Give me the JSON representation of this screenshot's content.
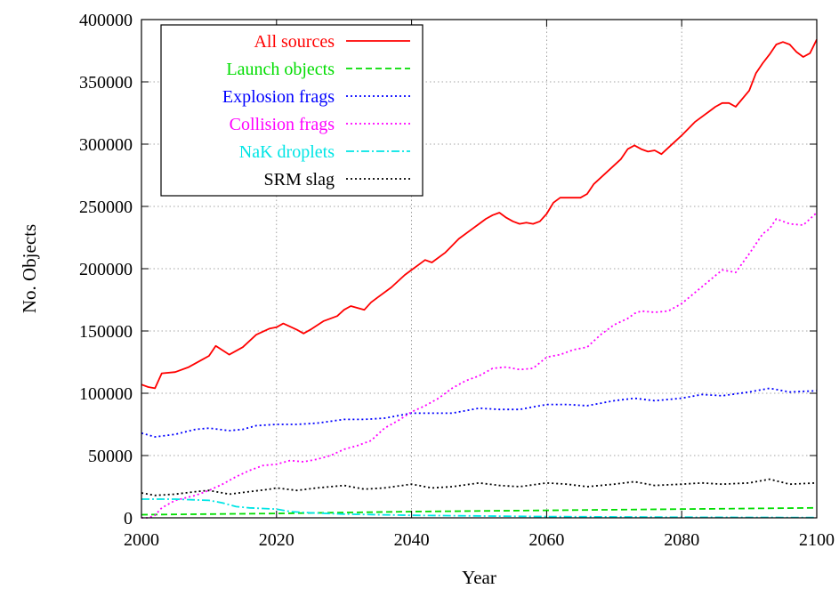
{
  "chart_data": {
    "type": "line",
    "title": "",
    "xlabel": "Year",
    "ylabel": "No. Objects",
    "xlim": [
      2000,
      2100
    ],
    "ylim": [
      0,
      400000
    ],
    "xticks": [
      2000,
      2020,
      2040,
      2060,
      2080,
      2100
    ],
    "yticks": [
      0,
      50000,
      100000,
      150000,
      200000,
      250000,
      300000,
      350000,
      400000
    ],
    "grid": true,
    "legend_position": "top-left",
    "series": [
      {
        "name": "All sources",
        "color": "#ff0000",
        "dash": "solid",
        "x": [
          2000,
          2001,
          2002,
          2003,
          2005,
          2007,
          2009,
          2010,
          2011,
          2013,
          2015,
          2017,
          2019,
          2020,
          2021,
          2023,
          2024,
          2025,
          2027,
          2029,
          2030,
          2031,
          2033,
          2034,
          2035,
          2037,
          2039,
          2040,
          2041,
          2042,
          2043,
          2045,
          2047,
          2049,
          2050,
          2051,
          2052,
          2053,
          2054,
          2055,
          2056,
          2057,
          2058,
          2059,
          2060,
          2061,
          2062,
          2063,
          2065,
          2066,
          2067,
          2069,
          2071,
          2072,
          2073,
          2074,
          2075,
          2076,
          2077,
          2078,
          2080,
          2082,
          2084,
          2085,
          2086,
          2087,
          2088,
          2090,
          2091,
          2092,
          2093,
          2094,
          2095,
          2096,
          2097,
          2098,
          2099,
          2100
        ],
        "y": [
          107000,
          105000,
          104000,
          116000,
          117000,
          121000,
          127000,
          130000,
          138000,
          131000,
          137000,
          147000,
          152000,
          153000,
          156000,
          151000,
          148000,
          151000,
          158000,
          162000,
          167000,
          170000,
          167000,
          173000,
          177000,
          185000,
          195000,
          199000,
          203000,
          207000,
          205000,
          213000,
          224000,
          232000,
          236000,
          240000,
          243000,
          245000,
          241000,
          238000,
          236000,
          237000,
          236000,
          238000,
          244000,
          253000,
          257000,
          257000,
          257000,
          260000,
          268000,
          278000,
          288000,
          296000,
          299000,
          296000,
          294000,
          295000,
          292000,
          297000,
          307000,
          318000,
          326000,
          330000,
          333000,
          333000,
          330000,
          343000,
          357000,
          365000,
          372000,
          380000,
          382000,
          380000,
          374000,
          370000,
          373000,
          384000
        ]
      },
      {
        "name": "Launch objects",
        "color": "#00dd00",
        "dash": "dashed",
        "x": [
          2000,
          2020,
          2040,
          2060,
          2080,
          2100
        ],
        "y": [
          2500,
          3500,
          5000,
          6000,
          7000,
          8000
        ]
      },
      {
        "name": "Explosion frags",
        "color": "#0000ff",
        "dash": "dotted",
        "x": [
          2000,
          2002,
          2005,
          2008,
          2010,
          2013,
          2015,
          2017,
          2020,
          2023,
          2026,
          2030,
          2033,
          2036,
          2040,
          2043,
          2046,
          2050,
          2053,
          2056,
          2060,
          2063,
          2066,
          2070,
          2073,
          2076,
          2080,
          2083,
          2086,
          2090,
          2093,
          2096,
          2100
        ],
        "y": [
          68000,
          65000,
          67000,
          71000,
          72000,
          70000,
          71000,
          74000,
          75000,
          75000,
          76000,
          79000,
          79000,
          80000,
          84000,
          84000,
          84000,
          88000,
          87000,
          87000,
          91000,
          91000,
          90000,
          94000,
          96000,
          94000,
          96000,
          99000,
          98000,
          101000,
          104000,
          101000,
          102000
        ]
      },
      {
        "name": "Collision frags",
        "color": "#ff00ff",
        "dash": "dotted",
        "x": [
          2000,
          2001,
          2002,
          2003,
          2005,
          2008,
          2010,
          2012,
          2014,
          2016,
          2018,
          2020,
          2022,
          2024,
          2026,
          2028,
          2030,
          2032,
          2034,
          2036,
          2038,
          2040,
          2042,
          2044,
          2046,
          2048,
          2050,
          2052,
          2054,
          2056,
          2058,
          2060,
          2062,
          2064,
          2066,
          2068,
          2070,
          2072,
          2073,
          2074,
          2076,
          2078,
          2080,
          2082,
          2084,
          2086,
          2087,
          2088,
          2090,
          2092,
          2093,
          2094,
          2095,
          2096,
          2098,
          2100
        ],
        "y": [
          0,
          0,
          2000,
          8000,
          14000,
          18000,
          22000,
          27000,
          33000,
          38000,
          42000,
          43000,
          46000,
          45000,
          47000,
          50000,
          55000,
          58000,
          62000,
          72000,
          78000,
          85000,
          90000,
          96000,
          104000,
          110000,
          114000,
          120000,
          121000,
          119000,
          120000,
          129000,
          131000,
          135000,
          137000,
          147000,
          155000,
          160000,
          164000,
          166000,
          165000,
          166000,
          172000,
          181000,
          190000,
          199000,
          198000,
          197000,
          212000,
          228000,
          232000,
          240000,
          238000,
          236000,
          235000,
          245000
        ]
      },
      {
        "name": "NaK droplets",
        "color": "#00e5e5",
        "dash": "dashdot",
        "x": [
          2000,
          2005,
          2010,
          2012,
          2014,
          2016,
          2018,
          2020,
          2022,
          2025,
          2030,
          2040,
          2060,
          2080,
          2100
        ],
        "y": [
          15000,
          15000,
          14000,
          12000,
          9000,
          8000,
          7500,
          7000,
          5000,
          4000,
          3000,
          2000,
          1000,
          500,
          200
        ]
      },
      {
        "name": "SRM slag",
        "color": "#000000",
        "dash": "dotted",
        "x": [
          2000,
          2002,
          2005,
          2008,
          2010,
          2013,
          2016,
          2019,
          2020,
          2023,
          2026,
          2030,
          2033,
          2036,
          2040,
          2043,
          2046,
          2050,
          2053,
          2056,
          2060,
          2063,
          2066,
          2070,
          2073,
          2076,
          2080,
          2083,
          2086,
          2090,
          2093,
          2096,
          2100
        ],
        "y": [
          20000,
          18000,
          19000,
          21000,
          22000,
          19000,
          21000,
          23000,
          24000,
          22000,
          24000,
          26000,
          23000,
          24000,
          27000,
          24000,
          25000,
          28000,
          26000,
          25000,
          28000,
          27000,
          25000,
          27000,
          29000,
          26000,
          27000,
          28000,
          27000,
          28000,
          31000,
          27000,
          28000
        ]
      }
    ]
  }
}
